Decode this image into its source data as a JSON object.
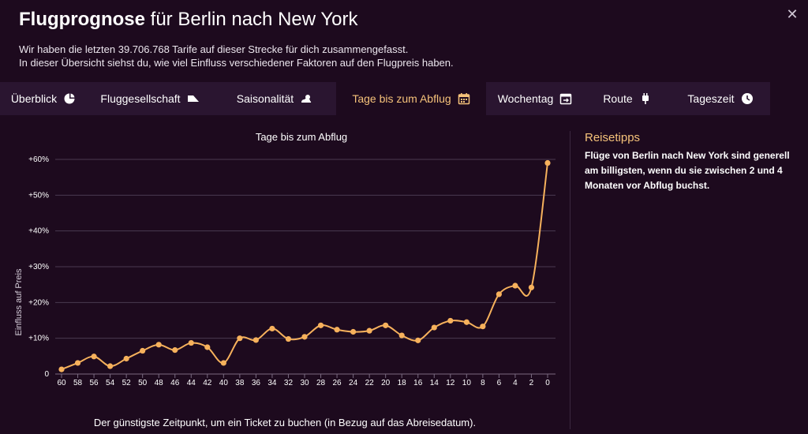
{
  "header": {
    "title_bold": "Flugprognose",
    "title_rest": "für Berlin nach New York",
    "line1": "Wir haben die letzten 39.706.768 Tarife auf dieser Strecke für dich zusammengefasst.",
    "line2": "In dieser Übersicht siehst du, wie viel Einfluss verschiedener Faktoren auf den Flugpreis haben.",
    "close_symbol": "✕"
  },
  "tabs": [
    {
      "label": "Überblick",
      "icon": "pie-chart-icon"
    },
    {
      "label": "Fluggesellschaft",
      "icon": "airplane-tail-icon"
    },
    {
      "label": "Saisonalität",
      "icon": "weather-icon"
    },
    {
      "label": "Tage bis zum Abflug",
      "icon": "calendar-icon",
      "active": true
    },
    {
      "label": "Wochentag",
      "icon": "calendar-week-icon"
    },
    {
      "label": "Route",
      "icon": "route-plug-icon"
    },
    {
      "label": "Tageszeit",
      "icon": "clock-icon"
    }
  ],
  "tips": {
    "title": "Reisetipps",
    "text": "Flüge von Berlin nach New York sind generell am billigsten, wenn du sie zwischen 2 und 4 Monaten vor Abflug buchst."
  },
  "footer_note": "Der günstigste Zeitpunkt, um ein Ticket zu buchen (in Bezug auf das Abreisedatum).",
  "colors": {
    "background": "#1d0a1e",
    "tab_bar": "#2a1530",
    "accent": "#f5c27a",
    "line": "#f6b15c",
    "grid": "#4a3a50"
  },
  "chart_data": {
    "type": "line",
    "title": "Tage bis zum Abflug",
    "xlabel": "",
    "ylabel": "Einfluss auf Preis",
    "x": [
      60,
      59,
      58,
      57,
      56,
      55,
      54,
      53,
      52,
      51,
      50,
      49,
      48,
      47,
      46,
      45,
      44,
      43,
      42,
      41,
      40,
      39,
      38,
      37,
      36,
      35,
      34,
      33,
      32,
      31,
      30,
      29,
      28,
      27,
      26,
      25,
      24,
      23,
      22,
      21,
      20,
      19,
      18,
      17,
      16,
      15,
      14,
      13,
      12,
      11,
      10,
      9,
      8,
      7,
      6,
      5,
      4,
      3,
      2,
      1,
      0
    ],
    "series": [
      {
        "values": [
          1.3,
          null,
          3.1,
          null,
          4.9,
          null,
          2.2,
          null,
          4.3,
          null,
          6.5,
          null,
          8.2,
          null,
          6.7,
          null,
          8.7,
          null,
          7.5,
          null,
          3.1,
          null,
          10.0,
          null,
          9.5,
          null,
          12.7,
          null,
          9.8,
          null,
          10.4,
          null,
          13.6,
          null,
          12.4,
          null,
          11.8,
          null,
          12.1,
          null,
          13.6,
          null,
          10.8,
          null,
          9.4,
          null,
          13.0,
          null,
          14.9,
          null,
          14.5,
          null,
          13.3,
          null,
          22.3,
          null,
          24.7,
          null,
          24.2,
          null,
          59.0
        ]
      }
    ],
    "xticks": [
      "60",
      "58",
      "56",
      "54",
      "52",
      "50",
      "48",
      "46",
      "44",
      "42",
      "40",
      "38",
      "36",
      "34",
      "32",
      "30",
      "28",
      "26",
      "24",
      "22",
      "20",
      "18",
      "16",
      "14",
      "12",
      "10",
      "8",
      "6",
      "4",
      "2",
      "0"
    ],
    "yticks": [
      "0",
      "+10%",
      "+20%",
      "+30%",
      "+40%",
      "+50%",
      "+60%"
    ],
    "ylim": [
      0,
      60
    ],
    "grid": true,
    "legend": "none"
  }
}
